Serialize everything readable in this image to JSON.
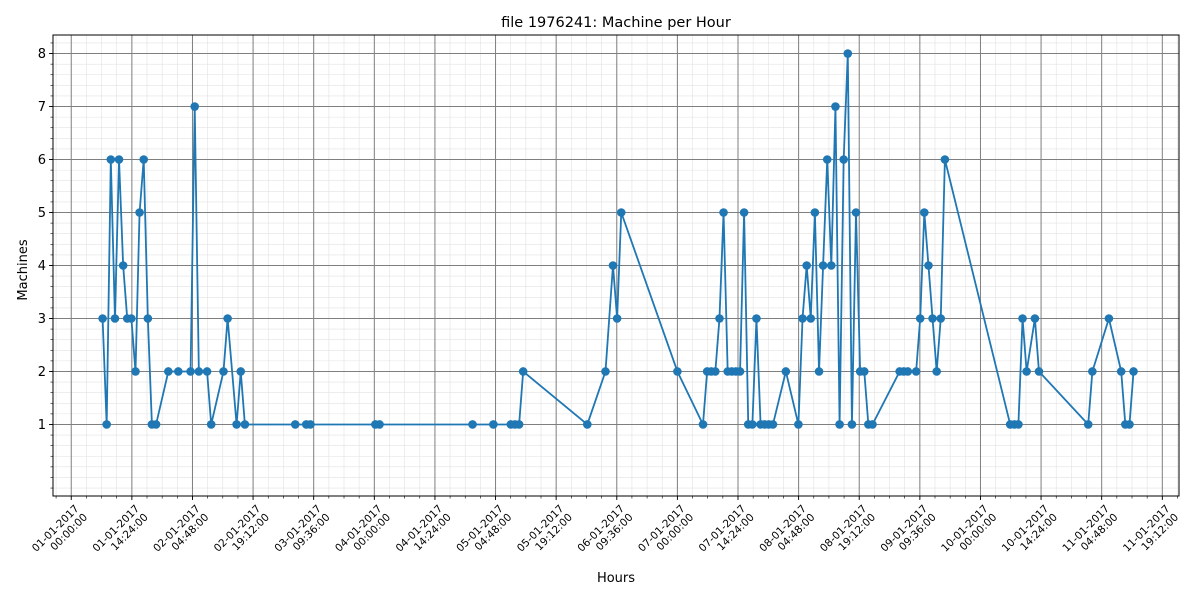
{
  "chart_data": {
    "type": "line",
    "title": "file 1976241: Machine per Hour",
    "xlabel": "Hours",
    "ylabel": "Machines",
    "x_unit": "datetime",
    "xlim": [
      "2016-12-31 19:40:00",
      "2017-01-11 23:10:00"
    ],
    "ylim": [
      -0.35,
      8.35
    ],
    "y_ticks": [
      1,
      2,
      3,
      4,
      5,
      6,
      7,
      8
    ],
    "x_ticks": [
      {
        "value": "2017-01-01 00:00:00",
        "label_date": "01-01-2017",
        "label_time": "00:00:00"
      },
      {
        "value": "2017-01-01 14:24:00",
        "label_date": "01-01-2017",
        "label_time": "14:24:00"
      },
      {
        "value": "2017-01-02 04:48:00",
        "label_date": "02-01-2017",
        "label_time": "04:48:00"
      },
      {
        "value": "2017-01-02 19:12:00",
        "label_date": "02-01-2017",
        "label_time": "19:12:00"
      },
      {
        "value": "2017-01-03 09:36:00",
        "label_date": "03-01-2017",
        "label_time": "09:36:00"
      },
      {
        "value": "2017-01-04 00:00:00",
        "label_date": "04-01-2017",
        "label_time": "00:00:00"
      },
      {
        "value": "2017-01-04 14:24:00",
        "label_date": "04-01-2017",
        "label_time": "14:24:00"
      },
      {
        "value": "2017-01-05 04:48:00",
        "label_date": "05-01-2017",
        "label_time": "04:48:00"
      },
      {
        "value": "2017-01-05 19:12:00",
        "label_date": "05-01-2017",
        "label_time": "19:12:00"
      },
      {
        "value": "2017-01-06 09:36:00",
        "label_date": "06-01-2017",
        "label_time": "09:36:00"
      },
      {
        "value": "2017-01-07 00:00:00",
        "label_date": "07-01-2017",
        "label_time": "00:00:00"
      },
      {
        "value": "2017-01-07 14:24:00",
        "label_date": "07-01-2017",
        "label_time": "14:24:00"
      },
      {
        "value": "2017-01-08 04:48:00",
        "label_date": "08-01-2017",
        "label_time": "04:48:00"
      },
      {
        "value": "2017-01-08 19:12:00",
        "label_date": "08-01-2017",
        "label_time": "19:12:00"
      },
      {
        "value": "2017-01-09 09:36:00",
        "label_date": "09-01-2017",
        "label_time": "09:36:00"
      },
      {
        "value": "2017-01-10 00:00:00",
        "label_date": "10-01-2017",
        "label_time": "00:00:00"
      },
      {
        "value": "2017-01-10 14:24:00",
        "label_date": "10-01-2017",
        "label_time": "14:24:00"
      },
      {
        "value": "2017-01-11 04:48:00",
        "label_date": "11-01-2017",
        "label_time": "04:48:00"
      },
      {
        "value": "2017-01-11 19:12:00",
        "label_date": "11-01-2017",
        "label_time": "19:12:00"
      }
    ],
    "grid": {
      "major": true,
      "minor": true
    },
    "color": "#1f77b4",
    "series": [
      {
        "points": [
          [
            "2017-01-01 07:27",
            3
          ],
          [
            "2017-01-01 08:25",
            1
          ],
          [
            "2017-01-01 09:24",
            6
          ],
          [
            "2017-01-01 10:23",
            3
          ],
          [
            "2017-01-01 11:21",
            6
          ],
          [
            "2017-01-01 12:20",
            4
          ],
          [
            "2017-01-01 13:18",
            3
          ],
          [
            "2017-01-01 14:17",
            3
          ],
          [
            "2017-01-01 15:16",
            2
          ],
          [
            "2017-01-01 16:14",
            5
          ],
          [
            "2017-01-01 17:13",
            6
          ],
          [
            "2017-01-01 18:12",
            3
          ],
          [
            "2017-01-01 19:10",
            1
          ],
          [
            "2017-01-01 20:09",
            1
          ],
          [
            "2017-01-01 23:04",
            2
          ],
          [
            "2017-01-02 01:26",
            2
          ],
          [
            "2017-01-02 04:21",
            2
          ],
          [
            "2017-01-02 05:20",
            7
          ],
          [
            "2017-01-02 06:19",
            2
          ],
          [
            "2017-01-02 08:16",
            2
          ],
          [
            "2017-01-02 09:15",
            1
          ],
          [
            "2017-01-02 12:10",
            2
          ],
          [
            "2017-01-02 13:09",
            3
          ],
          [
            "2017-01-02 15:17",
            1
          ],
          [
            "2017-01-02 16:16",
            2
          ],
          [
            "2017-01-02 17:15",
            1
          ],
          [
            "2017-01-03 05:13",
            1
          ],
          [
            "2017-01-03 07:50",
            1
          ],
          [
            "2017-01-03 08:49",
            1
          ],
          [
            "2017-01-04 00:15",
            1
          ],
          [
            "2017-01-04 01:14",
            1
          ],
          [
            "2017-01-04 23:20",
            1
          ],
          [
            "2017-01-05 04:17",
            1
          ],
          [
            "2017-01-05 08:26",
            1
          ],
          [
            "2017-01-05 09:25",
            1
          ],
          [
            "2017-01-05 10:24",
            1
          ],
          [
            "2017-01-05 11:22",
            2
          ],
          [
            "2017-01-06 02:36",
            1
          ],
          [
            "2017-01-06 06:55",
            2
          ],
          [
            "2017-01-06 08:42",
            4
          ],
          [
            "2017-01-06 09:41",
            3
          ],
          [
            "2017-01-06 10:40",
            5
          ],
          [
            "2017-01-07 00:00",
            2
          ],
          [
            "2017-01-07 06:05",
            1
          ],
          [
            "2017-01-07 07:04",
            2
          ],
          [
            "2017-01-07 08:02",
            2
          ],
          [
            "2017-01-07 09:01",
            2
          ],
          [
            "2017-01-07 10:00",
            3
          ],
          [
            "2017-01-07 10:58",
            5
          ],
          [
            "2017-01-07 11:57",
            2
          ],
          [
            "2017-01-07 12:56",
            2
          ],
          [
            "2017-01-07 13:54",
            2
          ],
          [
            "2017-01-07 14:53",
            2
          ],
          [
            "2017-01-07 15:51",
            5
          ],
          [
            "2017-01-07 16:50",
            1
          ],
          [
            "2017-01-07 17:49",
            1
          ],
          [
            "2017-01-07 18:47",
            3
          ],
          [
            "2017-01-07 19:46",
            1
          ],
          [
            "2017-01-07 20:45",
            1
          ],
          [
            "2017-01-07 21:43",
            1
          ],
          [
            "2017-01-07 22:42",
            1
          ],
          [
            "2017-01-08 01:46",
            2
          ],
          [
            "2017-01-08 04:45",
            1
          ],
          [
            "2017-01-08 05:44",
            3
          ],
          [
            "2017-01-08 06:43",
            4
          ],
          [
            "2017-01-08 07:41",
            3
          ],
          [
            "2017-01-08 08:40",
            5
          ],
          [
            "2017-01-08 09:39",
            2
          ],
          [
            "2017-01-08 10:37",
            4
          ],
          [
            "2017-01-08 11:36",
            6
          ],
          [
            "2017-01-08 12:34",
            4
          ],
          [
            "2017-01-08 13:33",
            7
          ],
          [
            "2017-01-08 14:32",
            1
          ],
          [
            "2017-01-08 15:30",
            6
          ],
          [
            "2017-01-08 16:29",
            8
          ],
          [
            "2017-01-08 17:28",
            1
          ],
          [
            "2017-01-08 18:26",
            5
          ],
          [
            "2017-01-08 19:25",
            2
          ],
          [
            "2017-01-08 20:24",
            2
          ],
          [
            "2017-01-08 21:22",
            1
          ],
          [
            "2017-01-08 22:21",
            1
          ],
          [
            "2017-01-09 04:48",
            2
          ],
          [
            "2017-01-09 05:47",
            2
          ],
          [
            "2017-01-09 06:45",
            2
          ],
          [
            "2017-01-09 08:43",
            2
          ],
          [
            "2017-01-09 09:41",
            3
          ],
          [
            "2017-01-09 10:40",
            5
          ],
          [
            "2017-01-09 11:39",
            4
          ],
          [
            "2017-01-09 12:37",
            3
          ],
          [
            "2017-01-09 13:36",
            2
          ],
          [
            "2017-01-09 14:34",
            3
          ],
          [
            "2017-01-09 15:33",
            6
          ],
          [
            "2017-01-10 07:04",
            1
          ],
          [
            "2017-01-10 08:03",
            1
          ],
          [
            "2017-01-10 09:01",
            1
          ],
          [
            "2017-01-10 10:00",
            3
          ],
          [
            "2017-01-10 10:58",
            2
          ],
          [
            "2017-01-10 12:56",
            3
          ],
          [
            "2017-01-10 13:54",
            2
          ],
          [
            "2017-01-11 01:36",
            1
          ],
          [
            "2017-01-11 02:35",
            2
          ],
          [
            "2017-01-11 06:31",
            3
          ],
          [
            "2017-01-11 09:26",
            2
          ],
          [
            "2017-01-11 10:25",
            1
          ],
          [
            "2017-01-11 11:24",
            1
          ],
          [
            "2017-01-11 12:22",
            2
          ]
        ]
      }
    ]
  }
}
